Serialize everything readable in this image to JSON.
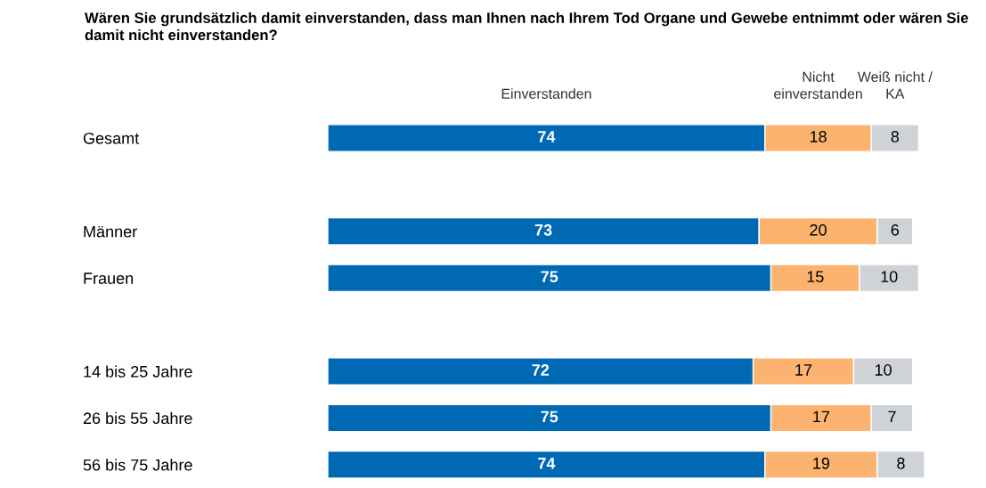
{
  "chart_data": {
    "type": "bar",
    "orientation": "horizontal",
    "stacked": true,
    "title": "Wären Sie grundsätzlich damit einverstanden, dass man Ihnen nach Ihrem Tod Organe und Gewebe entnimmt oder wären Sie damit nicht einverstanden?",
    "categories": [
      "Gesamt",
      null,
      "Männer",
      "Frauen",
      null,
      "14 bis 25 Jahre",
      "26 bis 55 Jahre",
      "56 bis 75 Jahre"
    ],
    "series": [
      {
        "name": "Einverstanden",
        "color": "#0069b4",
        "values": [
          74,
          null,
          73,
          75,
          null,
          72,
          75,
          74
        ]
      },
      {
        "name": "Nicht\neinverstanden",
        "color": "#fbb36f",
        "values": [
          18,
          null,
          20,
          15,
          null,
          17,
          17,
          19
        ]
      },
      {
        "name": "Weiß nicht /\nKA",
        "color": "#cfd3d8",
        "values": [
          8,
          null,
          6,
          10,
          null,
          10,
          7,
          8
        ]
      }
    ],
    "xlim": [
      0,
      101
    ],
    "data_labels": true,
    "tick_labels": "y",
    "grid": false,
    "legend": false
  }
}
